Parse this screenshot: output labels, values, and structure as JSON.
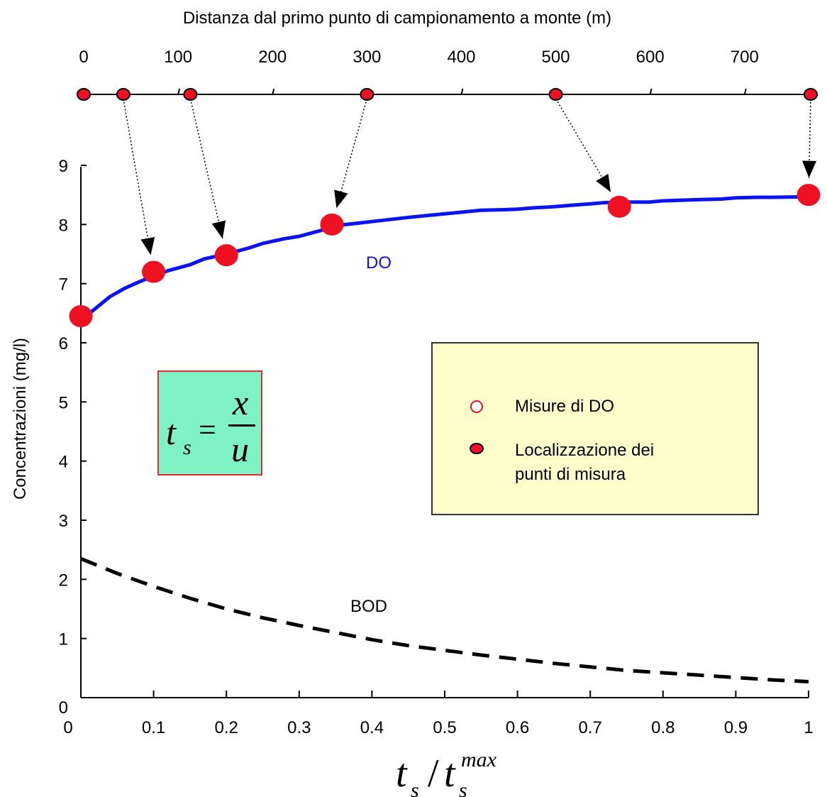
{
  "chart_data": {
    "type": "line",
    "top_axis": {
      "title": "Distanza dal primo punto di campionamento a monte (m)",
      "tick_labels": [
        "0",
        "100",
        "200",
        "300",
        "400",
        "500",
        "600",
        "700"
      ],
      "ticks": [
        0,
        100,
        200,
        300,
        400,
        500,
        600,
        700
      ],
      "xlim": [
        0,
        770
      ],
      "measurement_points": [
        0,
        42,
        113,
        300,
        500,
        770
      ]
    },
    "xlabel_base": "t",
    "xlabel_sub": "s",
    "xlabel_sup": "max",
    "ylabel": "Concentrazioni (mg/l)",
    "xlim": [
      0,
      1
    ],
    "ylim": [
      0,
      9
    ],
    "x_tick_labels": [
      "0",
      "0.1",
      "0.2",
      "0.3",
      "0.4",
      "0.5",
      "0.6",
      "0.7",
      "0.8",
      "0.9",
      "1"
    ],
    "y_tick_labels": [
      "0",
      "1",
      "2",
      "3",
      "4",
      "5",
      "6",
      "7",
      "8",
      "9"
    ],
    "series": [
      {
        "name": "DO",
        "style": "solid",
        "color": "#0a14f0",
        "x": [
          0.01,
          0.02,
          0.03,
          0.04,
          0.05,
          0.06,
          0.08,
          0.1,
          0.12,
          0.15,
          0.17,
          0.2,
          0.23,
          0.25,
          0.28,
          0.3,
          0.33,
          0.35,
          0.4,
          0.45,
          0.5,
          0.55,
          0.58,
          0.6,
          0.62,
          0.65,
          0.68,
          0.7,
          0.72,
          0.75,
          0.78,
          0.8,
          0.85,
          0.88,
          0.9,
          0.93,
          0.95,
          1.0
        ],
        "y": [
          6.48,
          6.58,
          6.68,
          6.78,
          6.85,
          6.92,
          7.03,
          7.13,
          7.22,
          7.32,
          7.42,
          7.5,
          7.6,
          7.68,
          7.76,
          7.8,
          7.9,
          7.98,
          8.05,
          8.12,
          8.18,
          8.24,
          8.25,
          8.26,
          8.28,
          8.3,
          8.33,
          8.35,
          8.37,
          8.38,
          8.38,
          8.4,
          8.42,
          8.43,
          8.45,
          8.46,
          8.46,
          8.47
        ]
      },
      {
        "name": "BOD",
        "style": "dashed",
        "color": "#000000",
        "x": [
          0.0,
          0.05,
          0.1,
          0.15,
          0.2,
          0.25,
          0.3,
          0.35,
          0.4,
          0.45,
          0.5,
          0.55,
          0.6,
          0.65,
          0.7,
          0.75,
          0.8,
          0.85,
          0.9,
          0.95,
          1.0
        ],
        "y": [
          2.35,
          2.1,
          1.88,
          1.68,
          1.5,
          1.35,
          1.22,
          1.1,
          0.98,
          0.88,
          0.8,
          0.72,
          0.65,
          0.58,
          0.52,
          0.46,
          0.42,
          0.38,
          0.34,
          0.3,
          0.27
        ]
      }
    ],
    "do_measurements": {
      "x": [
        0.0,
        0.1,
        0.2,
        0.345,
        0.74,
        1.0
      ],
      "y": [
        6.45,
        7.2,
        7.48,
        8.0,
        8.3,
        8.5
      ]
    },
    "annotations": {
      "do_label": "DO",
      "bod_label": "BOD",
      "formula": {
        "lhs": "t",
        "lhs_sub": "s",
        "num": "x",
        "den": "u"
      }
    },
    "legend": {
      "placement": "center-right",
      "entries": [
        {
          "label": "Misure di DO",
          "marker": "open-circle"
        },
        {
          "label_line1": "Localizzazione dei",
          "label_line2": "punti di misura",
          "marker": "filled-circle"
        }
      ]
    },
    "colors": {
      "marker_fill": "#ee1122",
      "do_line": "#0a14f0",
      "legend_bg": "#ffffcc",
      "formula_bg": "#7ff2c4",
      "formula_border": "#e0303a"
    }
  }
}
